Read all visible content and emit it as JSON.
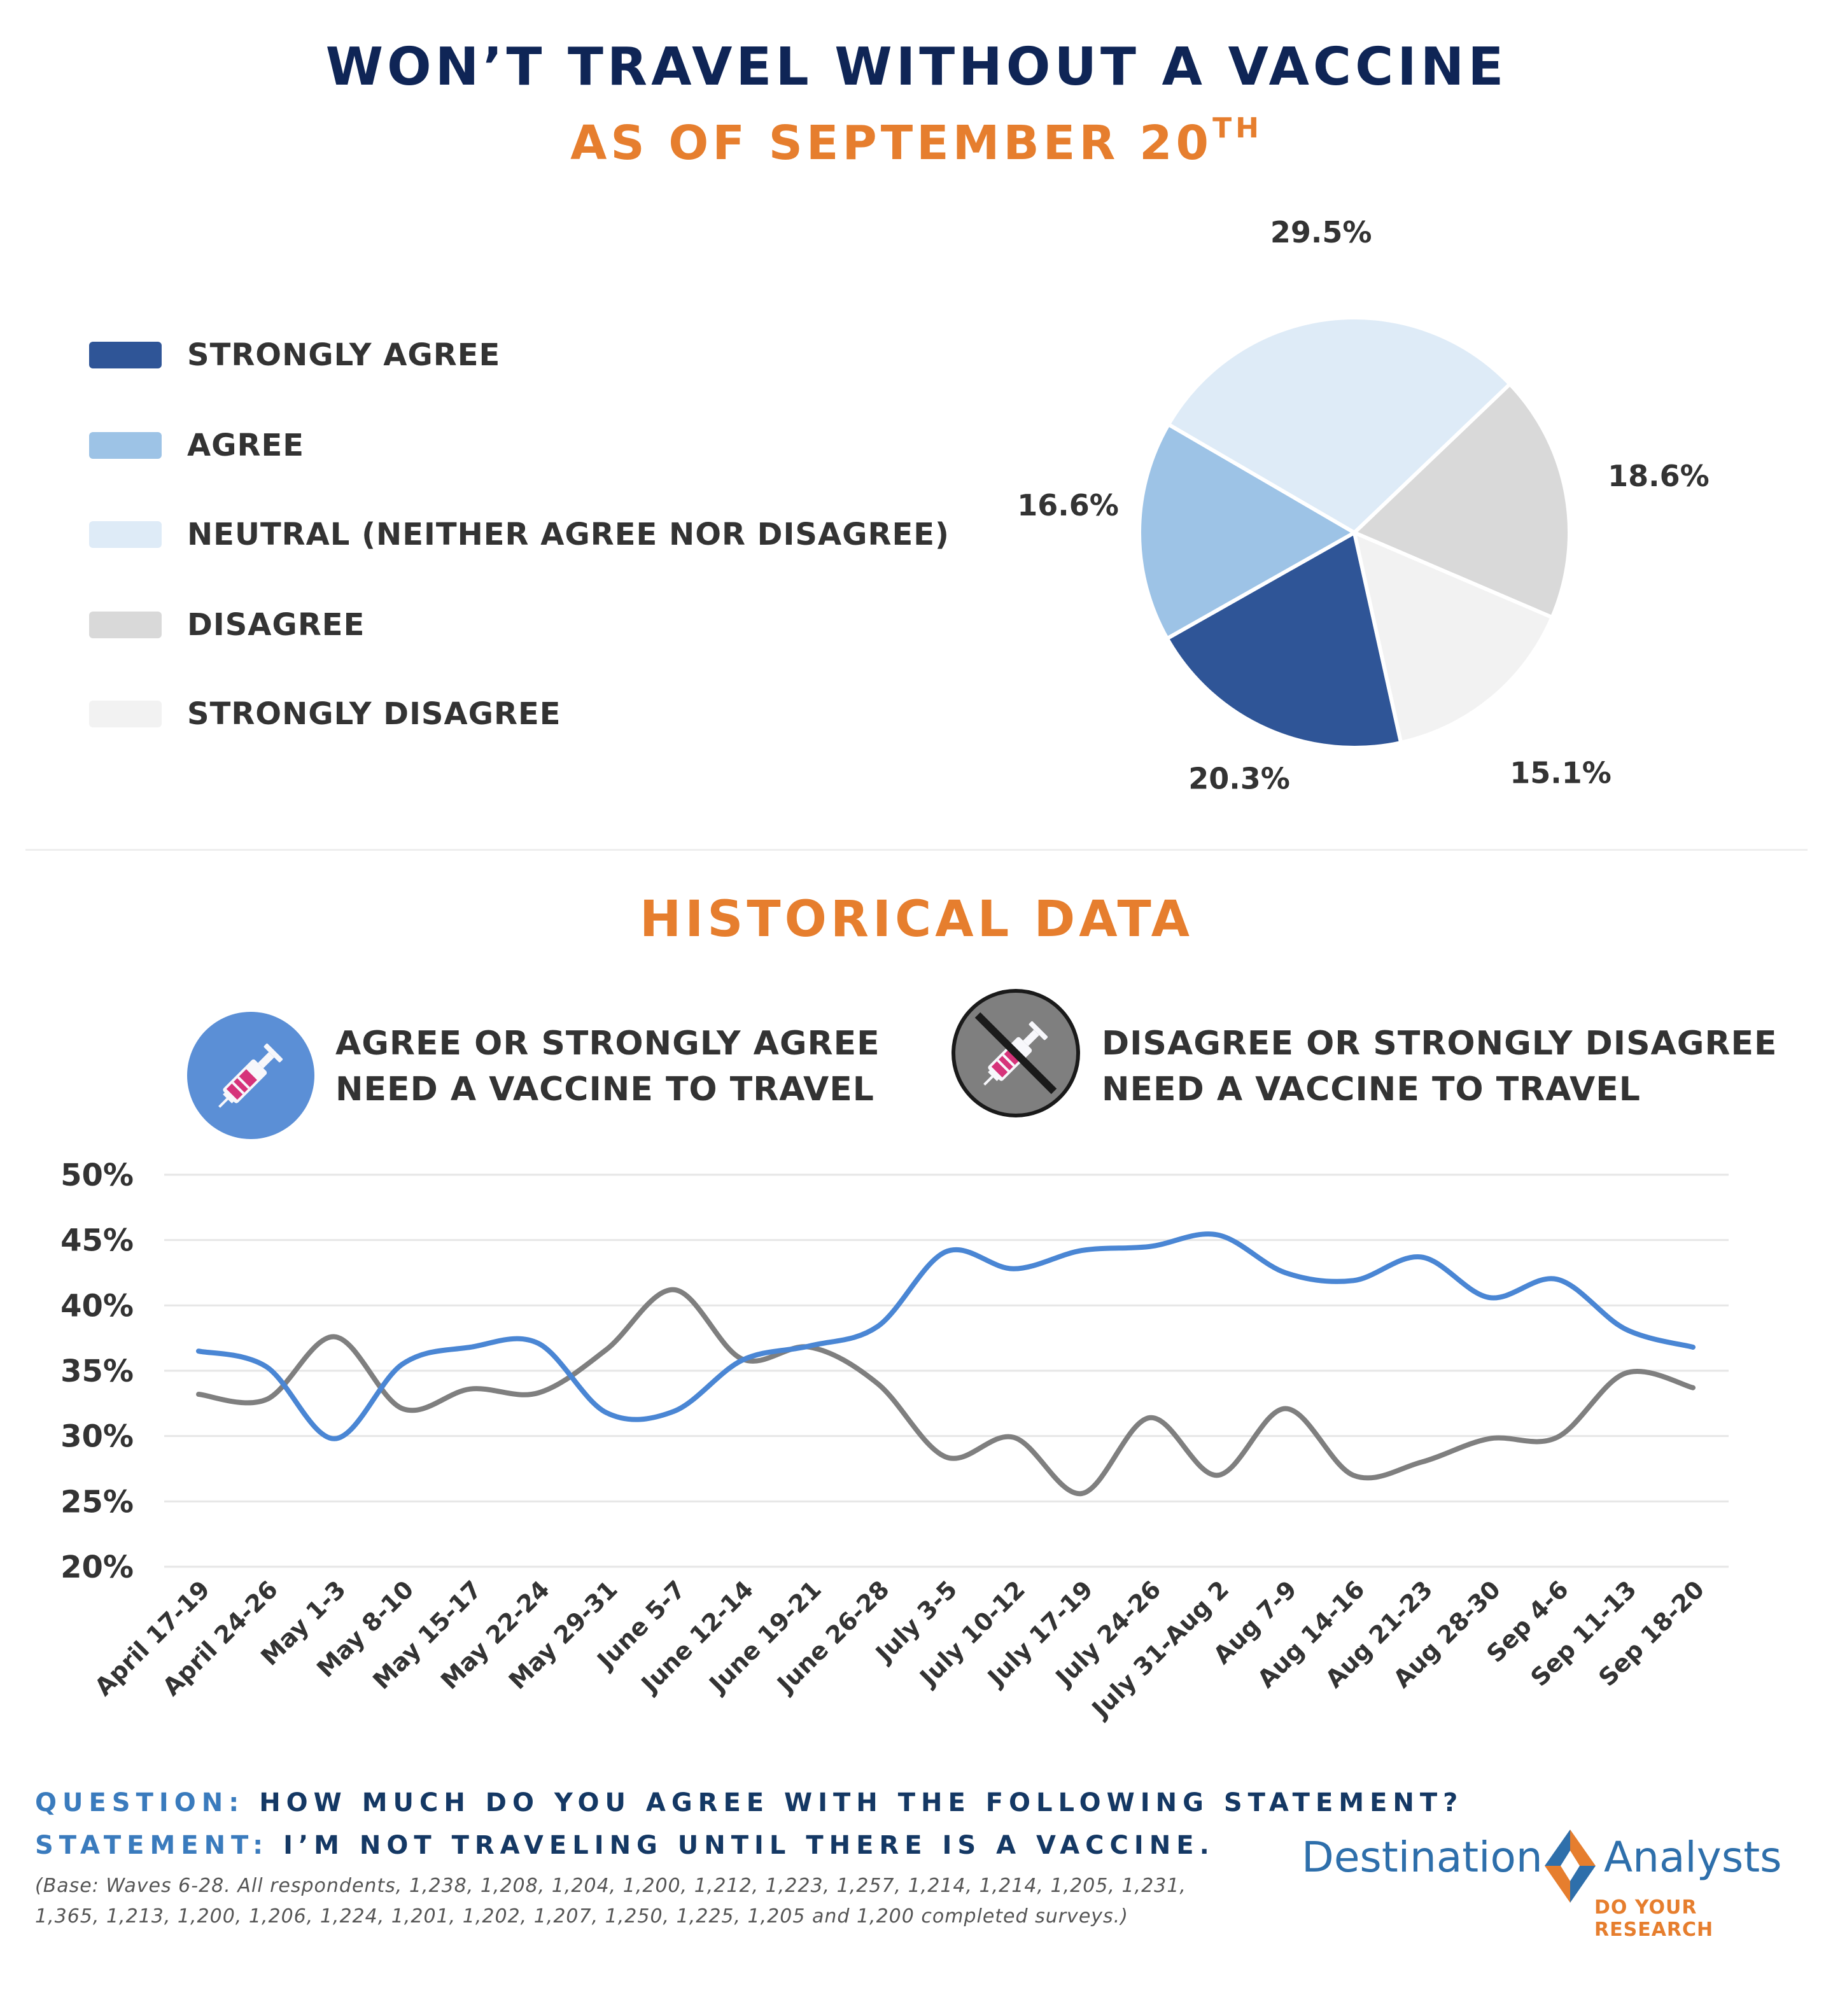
{
  "header": {
    "title": "WON’T TRAVEL WITHOUT A VACCINE",
    "subtitle": "AS OF SEPTEMBER 20",
    "subtitle_sup": "TH"
  },
  "legend": [
    {
      "label": "STRONGLY AGREE",
      "color": "#2f5597"
    },
    {
      "label": "AGREE",
      "color": "#9dc3e6"
    },
    {
      "label": "NEUTRAL (NEITHER AGREE NOR DISAGREE)",
      "color": "#deebf7"
    },
    {
      "label": "DISAGREE",
      "color": "#d9d9d9"
    },
    {
      "label": "STRONGLY DISAGREE",
      "color": "#f2f2f2"
    }
  ],
  "historical": {
    "title": "HISTORICAL DATA",
    "agree_label_line1": "AGREE OR STRONGLY AGREE",
    "agree_label_line2": "NEED A VACCINE TO TRAVEL",
    "disagree_label_line1": "DISAGREE OR STRONGLY DISAGREE",
    "disagree_label_line2": "NEED A VACCINE TO TRAVEL",
    "agree_color": "#4a86d4",
    "disagree_color": "#7f7f7f",
    "agree_icon": "syringe-icon",
    "disagree_icon": "no-syringe-icon"
  },
  "chart_data": [
    {
      "type": "pie",
      "categories": [
        "STRONGLY AGREE",
        "AGREE",
        "NEUTRAL (NEITHER AGREE NOR DISAGREE)",
        "DISAGREE",
        "STRONGLY DISAGREE"
      ],
      "values": [
        20.3,
        16.6,
        29.5,
        18.6,
        15.1
      ],
      "labels": [
        "20.3%",
        "16.6%",
        "29.5%",
        "18.6%",
        "15.1%"
      ],
      "colors": [
        "#2f5597",
        "#9dc3e6",
        "#deebf7",
        "#d9d9d9",
        "#f2f2f2"
      ]
    },
    {
      "type": "line",
      "x": [
        "April 17-19",
        "April 24-26",
        "May 1-3",
        "May 8-10",
        "May 15-17",
        "May 22-24",
        "May 29-31",
        "June 5-7",
        "June 12-14",
        "June 19-21",
        "June 26-28",
        "July 3-5",
        "July 10-12",
        "July 17-19",
        "July 24-26",
        "July 31-Aug 2",
        "Aug 7-9",
        "Aug 14-16",
        "Aug 21-23",
        "Aug 28-30",
        "Sep 4-6",
        "Sep 11-13",
        "Sep 18-20"
      ],
      "series": [
        {
          "values": [
            36.5,
            35.3,
            29.8,
            35.5,
            36.8,
            37.1,
            31.8,
            31.9,
            35.8,
            36.9,
            38.4,
            44.1,
            42.8,
            44.2,
            44.5,
            45.4,
            42.5,
            41.9,
            43.7,
            40.6,
            42.0,
            38.2,
            36.8
          ]
        },
        {
          "values": [
            33.2,
            32.8,
            37.6,
            32.1,
            33.6,
            33.3,
            36.6,
            41.2,
            35.9,
            36.8,
            34.0,
            28.4,
            29.9,
            25.6,
            31.4,
            27.0,
            32.1,
            27.0,
            28.0,
            29.8,
            29.9,
            34.8,
            33.7
          ]
        }
      ],
      "yticks": [
        "50%",
        "45%",
        "40%",
        "35%",
        "30%",
        "25%",
        "20%"
      ],
      "ylim": [
        20,
        50
      ],
      "grid": true
    }
  ],
  "footer": {
    "question_key": "QUESTION:",
    "question_text": "HOW MUCH DO YOU AGREE WITH THE FOLLOWING STATEMENT?",
    "statement_key": "STATEMENT:",
    "statement_text": "I’M NOT TRAVELING UNTIL THERE IS A VACCINE.",
    "base_note": "(Base: Waves 6-28. All respondents, 1,238, 1,208, 1,204, 1,200, 1,212, 1,223, 1,257, 1,214, 1,214, 1,205, 1,231, 1,365, 1,213, 1,200, 1,206, 1,224, 1,201, 1,202, 1,207, 1,250, 1,225, 1,205 and 1,200 completed surveys.)"
  },
  "logo": {
    "word1": "Destination",
    "word2": "Analysts",
    "tagline": "DO YOUR RESEARCH",
    "blue": "#2e6fab",
    "orange": "#e67e2e"
  }
}
